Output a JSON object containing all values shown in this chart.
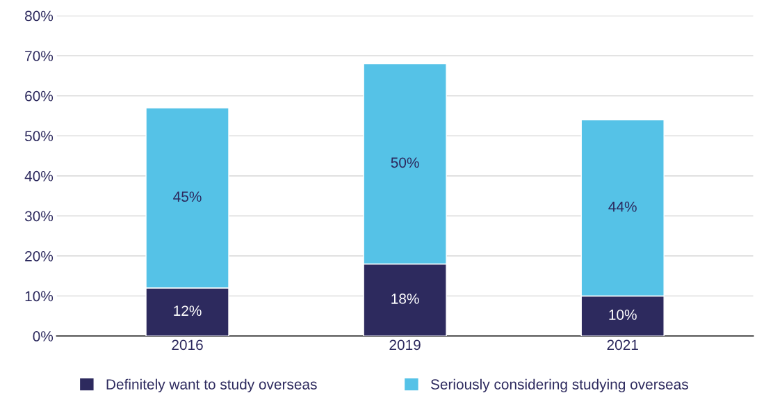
{
  "chart_data": {
    "type": "bar",
    "stacked": true,
    "categories": [
      "2016",
      "2019",
      "2021"
    ],
    "series": [
      {
        "name": "Definitely want to study overseas",
        "color": "#2d2a5e",
        "values": [
          12,
          18,
          10
        ],
        "value_labels": [
          "12%",
          "18%",
          "10%"
        ]
      },
      {
        "name": "Seriously considering studying overseas",
        "color": "#55c2e7",
        "values": [
          45,
          50,
          44
        ],
        "value_labels": [
          "45%",
          "50%",
          "44%"
        ]
      }
    ],
    "ylim": [
      0,
      80
    ],
    "yticks": [
      {
        "value": 0,
        "label": "0%"
      },
      {
        "value": 10,
        "label": "10%"
      },
      {
        "value": 20,
        "label": "20%"
      },
      {
        "value": 30,
        "label": "30%"
      },
      {
        "value": 40,
        "label": "40%"
      },
      {
        "value": 50,
        "label": "50%"
      },
      {
        "value": 60,
        "label": "60%"
      },
      {
        "value": 70,
        "label": "70%"
      },
      {
        "value": 80,
        "label": "80%"
      }
    ],
    "grid": "y",
    "legend": "bottom"
  }
}
